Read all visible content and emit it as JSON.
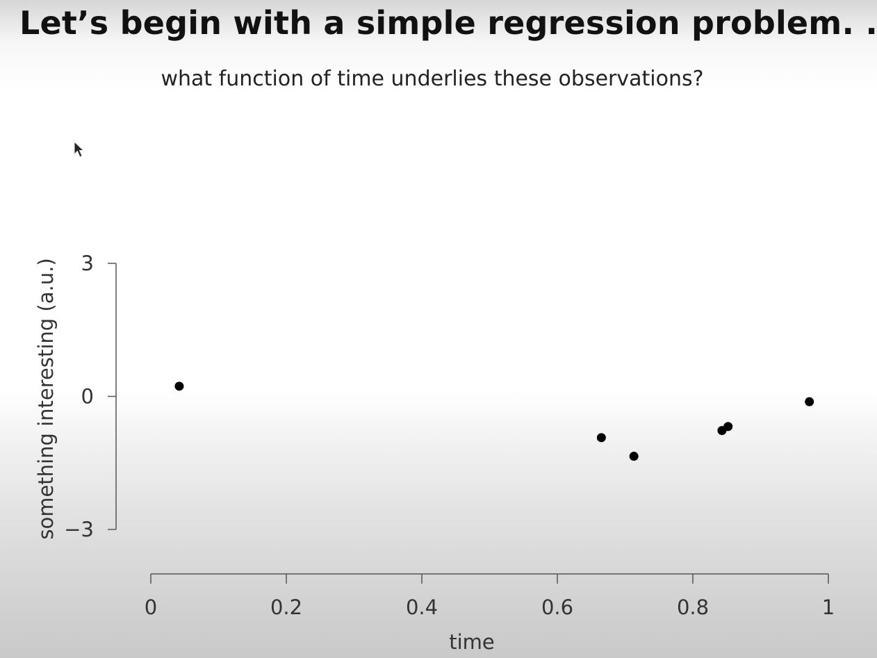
{
  "slide": {
    "title": "Let’s begin with a simple regression problem. . .",
    "subtitle": "what function of time underlies these observations?"
  },
  "chart_data": {
    "type": "scatter",
    "title": "",
    "xlabel": "time",
    "ylabel": "something interesting (a.u.)",
    "xlim": [
      0,
      1
    ],
    "ylim": [
      -3,
      3
    ],
    "x_ticks": [
      0,
      0.2,
      0.4,
      0.6,
      0.8,
      1
    ],
    "x_tick_labels": [
      "0",
      "0.2",
      "0.4",
      "0.6",
      "0.8",
      "1"
    ],
    "y_ticks": [
      3,
      0,
      -3
    ],
    "y_tick_labels": [
      "3",
      "0",
      "−3"
    ],
    "grid": false,
    "legend": "none",
    "marker_color": "#000000",
    "axis_color": "#555555",
    "points": [
      {
        "x": 0.042,
        "y": 0.23
      },
      {
        "x": 0.665,
        "y": -0.93
      },
      {
        "x": 0.713,
        "y": -1.35
      },
      {
        "x": 0.843,
        "y": -0.77
      },
      {
        "x": 0.852,
        "y": -0.68
      },
      {
        "x": 0.972,
        "y": -0.12
      }
    ]
  }
}
